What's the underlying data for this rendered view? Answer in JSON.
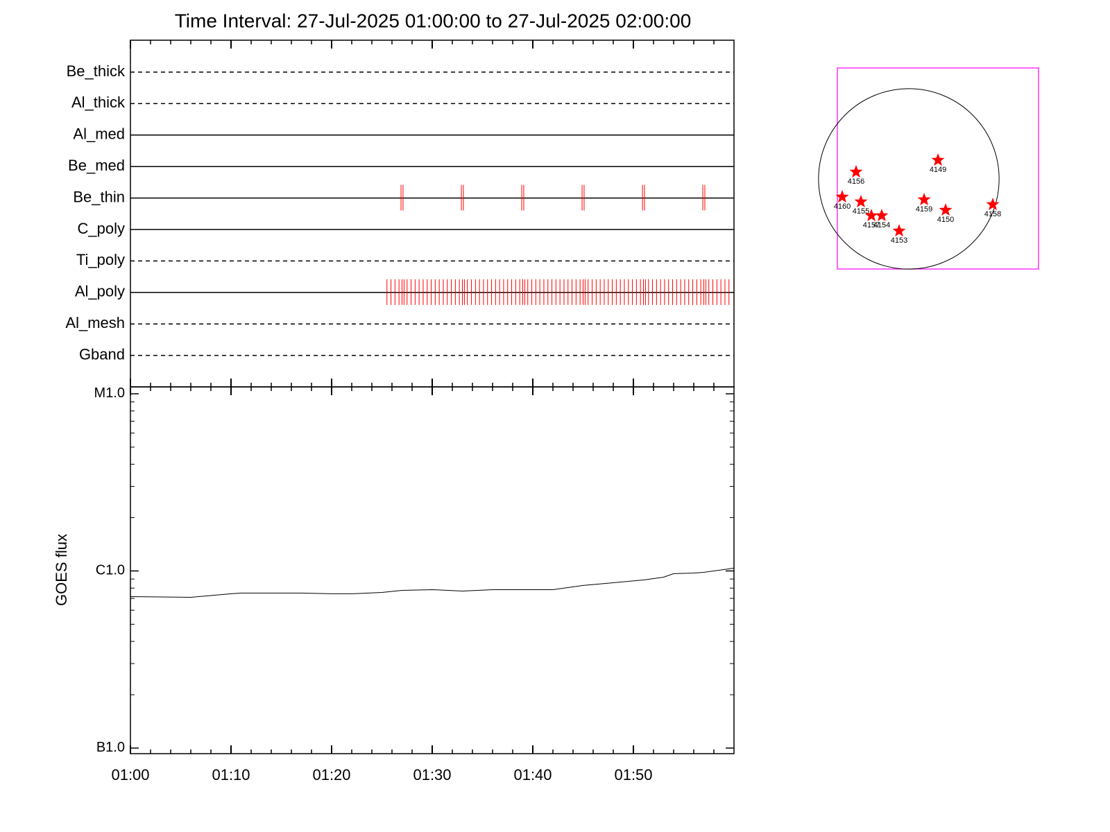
{
  "chart_data": [
    {
      "type": "timeline",
      "title": "Time Interval: 27-Jul-2025 01:00:00 to 27-Jul-2025 02:00:00",
      "series": [
        {
          "name": "Be_thick",
          "line": "dashed",
          "color": "#ff0000",
          "x": []
        },
        {
          "name": "Al_thick",
          "line": "dashed",
          "color": "#ff0000",
          "x": []
        },
        {
          "name": "Al_med",
          "line": "solid",
          "color": "#ff0000",
          "x": []
        },
        {
          "name": "Be_med",
          "line": "solid",
          "color": "#ff0000",
          "x": []
        },
        {
          "name": "Be_thin",
          "line": "solid",
          "color": "#ff0000",
          "x": [
            26.9,
            27.1,
            32.9,
            33.1,
            38.9,
            39.1,
            44.9,
            45.1,
            50.9,
            51.1,
            56.9,
            57.1
          ]
        },
        {
          "name": "C_poly",
          "line": "solid",
          "color": "#ff0000",
          "x": []
        },
        {
          "name": "Ti_poly",
          "line": "dashed",
          "color": "#ff0000",
          "x": []
        },
        {
          "name": "Al_poly",
          "line": "solid",
          "color": "#ff0000",
          "x": [
            25.5,
            25.9,
            26.3,
            26.7,
            27.0,
            27.2,
            27.5,
            27.9,
            28.3,
            28.7,
            29.1,
            29.5,
            29.9,
            30.3,
            30.7,
            31.1,
            31.5,
            31.9,
            32.3,
            32.7,
            33.0,
            33.2,
            33.5,
            33.9,
            34.3,
            34.7,
            35.1,
            35.5,
            35.9,
            36.3,
            36.7,
            37.1,
            37.5,
            37.9,
            38.3,
            38.7,
            39.0,
            39.2,
            39.5,
            39.9,
            40.3,
            40.7,
            41.1,
            41.5,
            41.9,
            42.3,
            42.7,
            43.1,
            43.5,
            43.9,
            44.3,
            44.7,
            45.0,
            45.2,
            45.5,
            45.9,
            46.3,
            46.7,
            47.1,
            47.5,
            47.9,
            48.3,
            48.7,
            49.1,
            49.5,
            49.9,
            50.3,
            50.7,
            51.0,
            51.2,
            51.5,
            51.9,
            52.3,
            52.7,
            53.1,
            53.5,
            53.9,
            54.3,
            54.7,
            55.1,
            55.5,
            55.9,
            56.3,
            56.7,
            57.0,
            57.2,
            57.5,
            57.9,
            58.3,
            58.7,
            59.1,
            59.5
          ]
        },
        {
          "name": "Al_mesh",
          "line": "dashed",
          "color": "#ff0000",
          "x": []
        },
        {
          "name": "Gband",
          "line": "dashed",
          "color": "#ff0000",
          "x": []
        }
      ]
    },
    {
      "type": "line",
      "ylabel": "GOES flux",
      "log": true,
      "color": "#000000",
      "xlim": [
        0,
        60
      ],
      "xticks": [
        {
          "value": 0,
          "label": "01:00"
        },
        {
          "value": 10,
          "label": "01:10"
        },
        {
          "value": 20,
          "label": "01:20"
        },
        {
          "value": 30,
          "label": "01:30"
        },
        {
          "value": 40,
          "label": "01:40"
        },
        {
          "value": 50,
          "label": "01:50"
        }
      ],
      "xminor": [
        2,
        4,
        6,
        8,
        12,
        14,
        16,
        18,
        22,
        24,
        26,
        28,
        32,
        34,
        36,
        38,
        42,
        44,
        46,
        48,
        52,
        54,
        56,
        58
      ],
      "ylim": [
        9.3e-08,
        1.094e-05
      ],
      "yticks": [
        {
          "value": 1e-07,
          "label": "B1.0"
        },
        {
          "value": 1e-06,
          "label": "C1.0"
        },
        {
          "value": 1e-05,
          "label": "M1.0"
        }
      ],
      "yminor": [
        2e-07,
        3e-07,
        4e-07,
        5e-07,
        6e-07,
        7e-07,
        8e-07,
        9e-07,
        2e-06,
        3e-06,
        4e-06,
        5e-06,
        6e-06,
        7e-06,
        8e-06,
        9e-06
      ],
      "x": [
        0,
        6,
        10,
        11,
        17,
        20,
        22,
        25,
        27,
        30,
        33,
        36,
        42,
        45,
        48,
        51,
        53,
        54,
        56,
        57,
        59,
        60
      ],
      "values": [
        7.16e-07,
        7.1e-07,
        7.43e-07,
        7.5e-07,
        7.5e-07,
        7.43e-07,
        7.43e-07,
        7.56e-07,
        7.77e-07,
        7.84e-07,
        7.7e-07,
        7.84e-07,
        7.84e-07,
        8.28e-07,
        8.58e-07,
        8.89e-07,
        9.22e-07,
        9.65e-07,
        9.73e-07,
        9.82e-07,
        1.018e-06,
        1.037e-06
      ]
    },
    {
      "type": "disk",
      "frame_color": "#ff00ff",
      "color": "#ff0000",
      "radius": 950,
      "xlim": [
        -752,
        1365
      ],
      "ylim": [
        -949,
        1168
      ],
      "labels": [
        "4149",
        "4156",
        "4160",
        "4155",
        "4157",
        "4154",
        "4153",
        "4159",
        "4150",
        "4158"
      ],
      "x": [
        307,
        -555,
        -701,
        -504,
        -394,
        -285,
        -102,
        161,
        387,
        883
      ],
      "y": [
        197,
        73,
        -190,
        -241,
        -387,
        -387,
        -548,
        -219,
        -329,
        -270
      ]
    }
  ]
}
